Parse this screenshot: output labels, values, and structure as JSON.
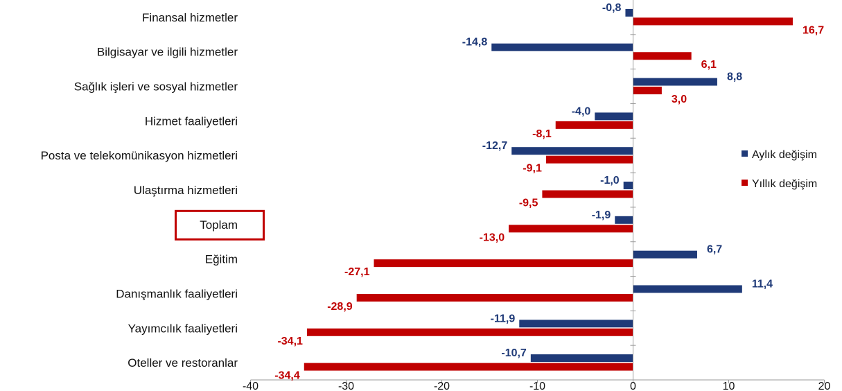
{
  "chart_data": {
    "type": "bar",
    "orientation": "horizontal",
    "categories": [
      "Finansal hizmetler",
      "Bilgisayar ve ilgili hizmetler",
      "Sağlık işleri ve sosyal hizmetler",
      "Hizmet faaliyetleri",
      "Posta ve telekomünikasyon hizmetleri",
      "Ulaştırma hizmetleri",
      "Toplam",
      "Eğitim",
      "Danışmanlık faaliyetleri",
      "Yayımcılık faaliyetleri",
      "Oteller ve restoranlar"
    ],
    "series": [
      {
        "name": "Aylık değişim",
        "color": "#1f3a78",
        "values": [
          -0.8,
          -14.8,
          8.8,
          -4.0,
          -12.7,
          -1.0,
          -1.9,
          6.7,
          11.4,
          -11.9,
          -10.7
        ],
        "labels": [
          "-0,8",
          "-14,8",
          "8,8",
          "-4,0",
          "-12,7",
          "-1,0",
          "-1,9",
          "6,7",
          "11,4",
          "-11,9",
          "-10,7"
        ]
      },
      {
        "name": "Yıllık değişim",
        "color": "#c00000",
        "values": [
          16.7,
          6.1,
          3.0,
          -8.1,
          -9.1,
          -9.5,
          -13.0,
          -27.1,
          -28.9,
          -34.1,
          -34.4
        ],
        "labels": [
          "16,7",
          "6,1",
          "3,0",
          "-8,1",
          "-9,1",
          "-9,5",
          "-13,0",
          "-27,1",
          "-28,9",
          "-34,1",
          "-34,4"
        ]
      }
    ],
    "xlim": [
      -40,
      20
    ],
    "xticks": [
      "-40",
      "-30",
      "-20",
      "-10",
      "0",
      "10",
      "20"
    ],
    "xtick_values": [
      -40,
      -30,
      -20,
      -10,
      0,
      10,
      20
    ],
    "highlighted_category": "Toplam",
    "highlight_color": "#c00000",
    "legend": {
      "position": "right"
    },
    "grid": false
  }
}
